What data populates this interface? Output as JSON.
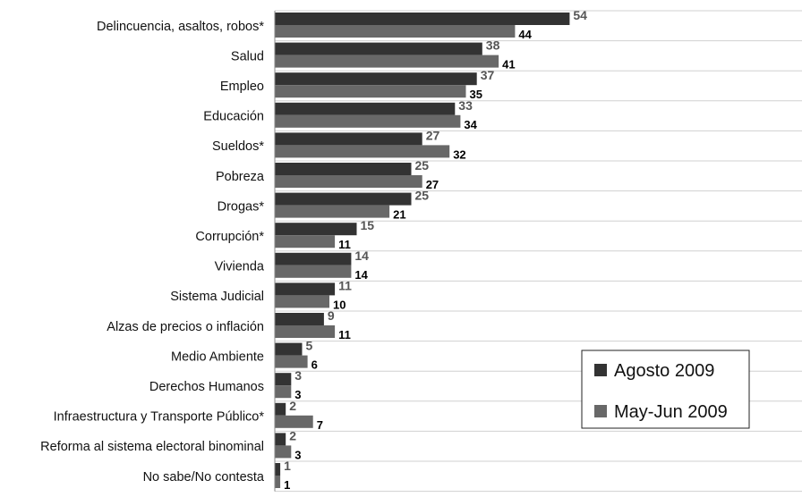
{
  "colors": {
    "agosto": "#333333",
    "mayjun": "#686868",
    "grid": "#d0d0d0",
    "axis": "#888888"
  },
  "chart_data": {
    "type": "bar",
    "orientation": "horizontal",
    "categories": [
      "Delincuencia, asaltos, robos*",
      "Salud",
      "Empleo",
      "Educación",
      "Sueldos*",
      "Pobreza",
      "Drogas*",
      "Corrupción*",
      "Vivienda",
      "Sistema Judicial",
      "Alzas de precios o inflación",
      "Medio Ambiente",
      "Derechos Humanos",
      "Infraestructura y Transporte Público*",
      "Reforma al sistema electoral binominal",
      "No sabe/No contesta"
    ],
    "series": [
      {
        "name": "Agosto 2009",
        "values": [
          54,
          38,
          37,
          33,
          27,
          25,
          25,
          15,
          14,
          11,
          9,
          5,
          3,
          2,
          2,
          1
        ]
      },
      {
        "name": "May-Jun 2009",
        "values": [
          44,
          41,
          35,
          34,
          32,
          27,
          21,
          11,
          14,
          10,
          11,
          6,
          3,
          7,
          3,
          1
        ]
      }
    ],
    "xlim": [
      0,
      100
    ],
    "grid": true,
    "legend": "bottom-right"
  }
}
